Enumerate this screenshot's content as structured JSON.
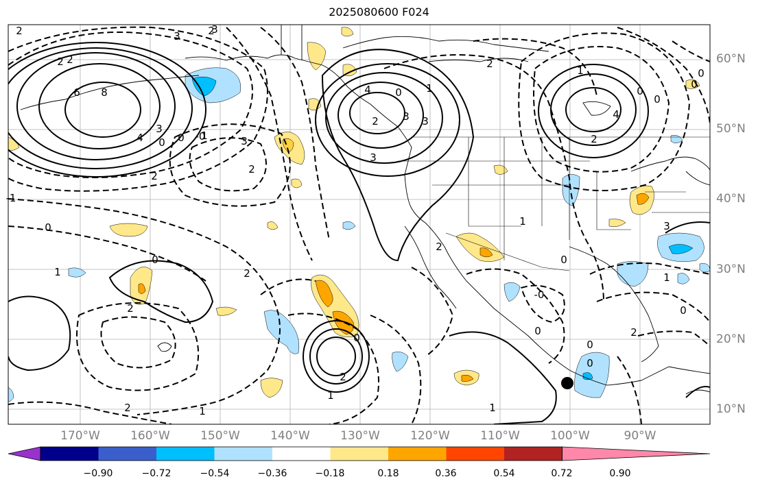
{
  "title": "2025080600 F024",
  "lat_labels": [
    "60°N",
    "50°N",
    "40°N",
    "30°N",
    "20°N",
    "10°N"
  ],
  "lon_labels": [
    "170°W",
    "160°W",
    "150°W",
    "140°W",
    "130°W",
    "120°W",
    "110°W",
    "100°W",
    "90°W"
  ],
  "colorbar": {
    "ticks": [
      "−0.90",
      "−0.72",
      "−0.54",
      "−0.36",
      "−0.18",
      "0.18",
      "0.36",
      "0.54",
      "0.72",
      "0.90"
    ],
    "colors": [
      "#9932cc",
      "#00008b",
      "#3a5fcd",
      "#00bfff",
      "#b0e2ff",
      "#ffffff",
      "#ffe88a",
      "#ffa500",
      "#ff4500",
      "#b22222",
      "#ff88aa"
    ]
  },
  "contour_labels": [
    "2",
    "3",
    "2",
    "3",
    "2",
    "2",
    "8",
    "6",
    "4",
    "3",
    "0",
    "-0",
    "0",
    "1",
    "2",
    "3",
    "2",
    "3",
    "0",
    "1",
    "4",
    "3",
    "2",
    "3",
    "2",
    "1",
    "0",
    "2",
    "0",
    "0",
    "-1",
    "0",
    "0",
    "1",
    "2",
    "2",
    "1",
    "0",
    "0",
    "1",
    "2",
    "1",
    "2",
    "0",
    "0",
    "1",
    "-0",
    "0",
    "2",
    "4",
    "3",
    "1",
    "2",
    "0",
    "0"
  ],
  "marker": "station-dot"
}
